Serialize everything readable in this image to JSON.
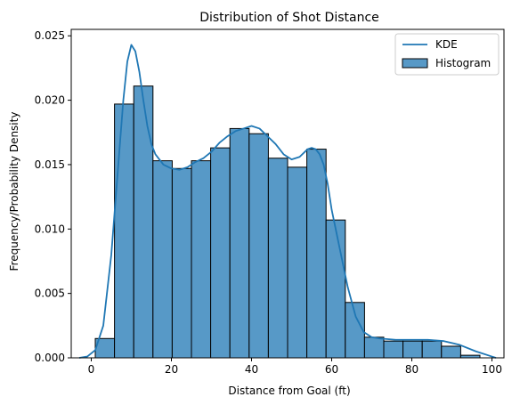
{
  "chart_data": {
    "type": "bar",
    "title": "Distribution of Shot Distance",
    "xlabel": "Distance from Goal (ft)",
    "ylabel": "Frequency/Probability Density",
    "xlim": [
      -5,
      103
    ],
    "ylim": [
      0,
      0.0255
    ],
    "x_ticks": [
      0,
      20,
      40,
      60,
      80,
      100
    ],
    "y_ticks": [
      0.0,
      0.005,
      0.01,
      0.015,
      0.02,
      0.025
    ],
    "y_tick_labels": [
      "0.000",
      "0.005",
      "0.010",
      "0.015",
      "0.020",
      "0.025"
    ],
    "grid": false,
    "legend_position": "top-right",
    "legend": [
      {
        "label": "KDE",
        "kind": "line",
        "color": "#1f77b4"
      },
      {
        "label": "Histogram",
        "kind": "patch",
        "color": "#5799c7"
      }
    ],
    "histogram": {
      "color": "#5799c7",
      "edge_color": "#000000",
      "bin_edges": [
        1,
        5.8,
        10.6,
        15.4,
        20.2,
        25,
        29.8,
        34.6,
        39.4,
        44.2,
        49,
        53.8,
        58.6,
        63.4,
        68.2,
        73,
        77.8,
        82.6,
        87.4,
        92.2,
        97
      ],
      "values": [
        0.0015,
        0.0197,
        0.0211,
        0.0153,
        0.0147,
        0.0153,
        0.0163,
        0.0178,
        0.0174,
        0.0155,
        0.0148,
        0.0162,
        0.0107,
        0.0043,
        0.0016,
        0.0013,
        0.0013,
        0.0013,
        0.0009,
        0.0002
      ]
    },
    "kde": {
      "color": "#1f77b4",
      "x": [
        -3,
        -1,
        1,
        3,
        5,
        6,
        7,
        8,
        9,
        10,
        11,
        12,
        13,
        14,
        15,
        16,
        18,
        20,
        22,
        24,
        26,
        28,
        30,
        32,
        34,
        36,
        38,
        40,
        42,
        44,
        46,
        48,
        50,
        52,
        54,
        55,
        56,
        57,
        58,
        59,
        60,
        62,
        64,
        66,
        68,
        70,
        72,
        76,
        80,
        84,
        88,
        92,
        96,
        100,
        101
      ],
      "y": [
        0.0,
        0.0001,
        0.0006,
        0.0025,
        0.008,
        0.012,
        0.016,
        0.02,
        0.023,
        0.0243,
        0.0238,
        0.0222,
        0.02,
        0.018,
        0.0166,
        0.0158,
        0.015,
        0.0147,
        0.0146,
        0.0148,
        0.0152,
        0.0155,
        0.016,
        0.0167,
        0.0172,
        0.0176,
        0.0178,
        0.018,
        0.0178,
        0.0172,
        0.0166,
        0.0158,
        0.0154,
        0.0156,
        0.0162,
        0.0163,
        0.0162,
        0.0158,
        0.015,
        0.0135,
        0.0115,
        0.0085,
        0.0055,
        0.0032,
        0.002,
        0.0016,
        0.0015,
        0.0014,
        0.0014,
        0.0014,
        0.0013,
        0.001,
        0.0005,
        0.0001,
        0.0
      ]
    }
  }
}
